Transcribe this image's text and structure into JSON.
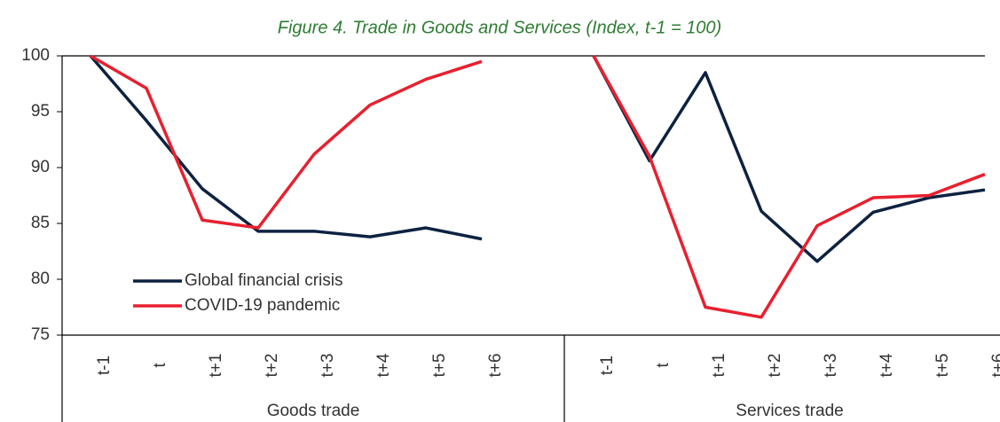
{
  "chart_data": {
    "type": "line",
    "title": "Figure 4. Trade in Goods and Services (Index, t-1 = 100)",
    "categories": [
      "t-1",
      "t",
      "t+1",
      "t+2",
      "t+3",
      "t+4",
      "t+5",
      "t+6",
      null,
      "t-1",
      "t",
      "t+1",
      "t+2",
      "t+3",
      "t+4",
      "t+5",
      "t+6"
    ],
    "groups": [
      "Goods trade",
      "Services trade"
    ],
    "series": [
      {
        "name": "Global financial crisis",
        "color": "#0d2240",
        "values": [
          100,
          94.2,
          88.1,
          84.3,
          84.3,
          83.8,
          84.6,
          83.6,
          null,
          100,
          90.6,
          98.5,
          86.1,
          81.6,
          86.0,
          87.3,
          88.0
        ]
      },
      {
        "name": "COVID-19 pandemic",
        "color": "#e8202f",
        "values": [
          100,
          97.1,
          85.3,
          84.6,
          91.2,
          95.6,
          97.9,
          99.5,
          null,
          100,
          91.0,
          77.5,
          76.6,
          84.8,
          87.3,
          87.5,
          89.4
        ]
      }
    ],
    "ylim": [
      75,
      100
    ],
    "yticks": [
      75,
      80,
      85,
      90,
      95,
      100
    ],
    "legend": "lower left"
  }
}
